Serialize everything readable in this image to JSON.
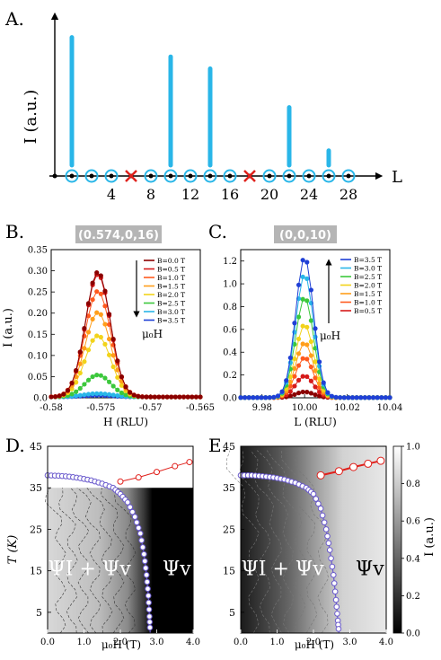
{
  "chart_data": [
    {
      "id": "A",
      "type": "bar",
      "panel_label": "A.",
      "ylabel": "I (a.u.)",
      "xlabel": "L",
      "xticks": [
        4,
        8,
        12,
        16,
        20,
        24,
        28
      ],
      "xlim": [
        -2,
        30
      ],
      "ylim": [
        0,
        1.0
      ],
      "colors": {
        "bar": "#29b6e8",
        "circle": "#29b6e8",
        "cross": "#e0201b",
        "axis": "#000000"
      },
      "bars": [
        {
          "L": 0,
          "value": 0.93
        },
        {
          "L": 10,
          "value": 0.8
        },
        {
          "L": 14,
          "value": 0.72
        },
        {
          "L": 22,
          "value": 0.46
        },
        {
          "L": 26,
          "value": 0.17
        }
      ],
      "circle_positions": [
        0,
        2,
        4,
        8,
        10,
        12,
        14,
        16,
        20,
        22,
        24,
        26,
        28
      ],
      "cross_positions": [
        6,
        18
      ]
    },
    {
      "id": "B",
      "type": "scatter",
      "panel_label": "B.",
      "badge": "(0.574,0,16)",
      "ylabel": "I (a.u.)",
      "xlabel": "H (RLU)",
      "xticks": [
        -0.58,
        -0.575,
        -0.57,
        -0.565
      ],
      "xtick_labels": [
        "-0.58",
        "-0.575",
        "-0.57",
        "-0.565"
      ],
      "yticks": [
        0,
        0.05,
        0.1,
        0.15,
        0.2,
        0.25,
        0.3,
        0.35
      ],
      "ytick_labels": [
        "0.0",
        "0.05",
        "0.10",
        "0.15",
        "0.20",
        "0.25",
        "0.30",
        "0.35"
      ],
      "xlim": [
        -0.58,
        -0.565
      ],
      "ylim": [
        0,
        0.35
      ],
      "arrow_label": "μ₀H",
      "center": -0.5753,
      "series": [
        {
          "name": "B=0.0 T",
          "color": "#8b0000",
          "peak": 0.295,
          "width": 0.00125
        },
        {
          "name": "B=0.5 T",
          "color": "#d61a1a",
          "peak": 0.29,
          "width": 0.00125
        },
        {
          "name": "B=1.0 T",
          "color": "#ff5a1e",
          "peak": 0.25,
          "width": 0.0013
        },
        {
          "name": "B=1.5 T",
          "color": "#ff9e1a",
          "peak": 0.2,
          "width": 0.0013
        },
        {
          "name": "B=2.0 T",
          "color": "#f2d31a",
          "peak": 0.145,
          "width": 0.0013
        },
        {
          "name": "B=2.5 T",
          "color": "#3cc83c",
          "peak": 0.052,
          "width": 0.0013
        },
        {
          "name": "B=3.0 T",
          "color": "#29b6e8",
          "peak": 0.008,
          "width": 0.0015
        },
        {
          "name": "B=3.5 T",
          "color": "#1f3fd6",
          "peak": 0.004,
          "width": 0.0015
        }
      ]
    },
    {
      "id": "C",
      "type": "scatter",
      "panel_label": "C.",
      "badge": "(0,0,10)",
      "xlabel": "L (RLU)",
      "xticks": [
        9.98,
        10.0,
        10.02,
        10.04
      ],
      "xtick_labels": [
        "9.98",
        "10.00",
        "10.02",
        "10.04"
      ],
      "yticks": [
        0,
        0.2,
        0.4,
        0.6,
        0.8,
        1.0,
        1.2
      ],
      "ytick_labels": [
        "0.0",
        "0.2",
        "0.4",
        "0.6",
        "0.8",
        "1.0",
        "1.2"
      ],
      "xlim": [
        9.97,
        10.04
      ],
      "ylim": [
        0,
        1.3
      ],
      "arrow_label": "μ₀H",
      "center": 10.0,
      "series": [
        {
          "name": "B=3.5 T",
          "color": "#1f3fd6",
          "peak": 1.23,
          "width": 0.0042
        },
        {
          "name": "B=3.0 T",
          "color": "#29b6e8",
          "peak": 1.08,
          "width": 0.0042
        },
        {
          "name": "B=2.5 T",
          "color": "#3cc83c",
          "peak": 0.88,
          "width": 0.0042
        },
        {
          "name": "B=2.0 T",
          "color": "#f2d31a",
          "peak": 0.64,
          "width": 0.0042
        },
        {
          "name": "B=1.5 T",
          "color": "#ff9e1a",
          "peak": 0.48,
          "width": 0.0042
        },
        {
          "name": "B=1.0 T",
          "color": "#ff5a1e",
          "peak": 0.35,
          "width": 0.0042
        },
        {
          "name": "B=0.5 T",
          "color": "#d61a1a",
          "peak": 0.19,
          "width": 0.0042
        },
        {
          "name": "",
          "color": "#8b0000",
          "peak": 0.05,
          "width": 0.0042
        }
      ]
    },
    {
      "id": "D",
      "type": "heatmap",
      "panel_label": "D.",
      "ylabel": "T (K)",
      "xlabel": "μ₀H (T)",
      "xticks": [
        0,
        1,
        2,
        3,
        4
      ],
      "xtick_labels": [
        "0.0",
        "1.0",
        "2.0",
        "3.0",
        "4.0"
      ],
      "yticks": [
        5,
        15,
        25,
        35,
        45
      ],
      "xlim": [
        0,
        4
      ],
      "ylim": [
        0,
        45
      ],
      "region_left": "Ψ_I + Ψ_v",
      "region_right": "Ψ_v",
      "phase_boundary": [
        [
          0,
          38
        ],
        [
          0.3,
          37.9
        ],
        [
          0.6,
          37.7
        ],
        [
          0.9,
          37.3
        ],
        [
          1.2,
          36.8
        ],
        [
          1.5,
          36
        ],
        [
          1.8,
          35
        ],
        [
          2.0,
          33.5
        ],
        [
          2.2,
          31.5
        ],
        [
          2.4,
          28
        ],
        [
          2.55,
          24
        ],
        [
          2.65,
          19
        ],
        [
          2.72,
          14
        ],
        [
          2.77,
          9
        ],
        [
          2.8,
          4
        ],
        [
          2.82,
          0
        ]
      ],
      "upper_line": [
        [
          2.0,
          36.5
        ],
        [
          2.5,
          37.5
        ],
        [
          3.0,
          38.8
        ],
        [
          3.5,
          40.2
        ],
        [
          3.9,
          41.2
        ]
      ]
    },
    {
      "id": "E",
      "type": "heatmap",
      "panel_label": "E.",
      "xlabel": "μ₀H (T)",
      "xticks": [
        0,
        1,
        2,
        3,
        4
      ],
      "xtick_labels": [
        "0.0",
        "1.0",
        "2.0",
        "3.0",
        "4.0"
      ],
      "yticks": [
        5,
        15,
        25,
        35,
        45
      ],
      "xlim": [
        0,
        4
      ],
      "ylim": [
        0,
        45
      ],
      "region_left": "Ψ_I + Ψ_v",
      "region_right": "Ψ_v",
      "colorbar_label": "I (a.u.)",
      "colorbar_ticks": [
        0.0,
        0.2,
        0.4,
        0.6,
        0.8,
        1.0
      ],
      "colorbar_tick_labels": [
        "0.0",
        "0.2",
        "0.4",
        "0.6",
        "0.8",
        "1.0"
      ],
      "phase_boundary": [
        [
          0,
          38
        ],
        [
          0.3,
          38
        ],
        [
          0.6,
          37.8
        ],
        [
          0.9,
          37.5
        ],
        [
          1.2,
          37
        ],
        [
          1.5,
          36.2
        ],
        [
          1.8,
          35
        ],
        [
          2.0,
          33.5
        ],
        [
          2.2,
          30
        ],
        [
          2.35,
          25
        ],
        [
          2.45,
          20
        ],
        [
          2.55,
          14
        ],
        [
          2.62,
          8
        ],
        [
          2.67,
          3
        ],
        [
          2.7,
          0
        ]
      ],
      "upper_line": [
        [
          2.2,
          38
        ],
        [
          2.7,
          39
        ],
        [
          3.1,
          40
        ],
        [
          3.5,
          40.8
        ],
        [
          3.85,
          41.5
        ]
      ]
    }
  ]
}
